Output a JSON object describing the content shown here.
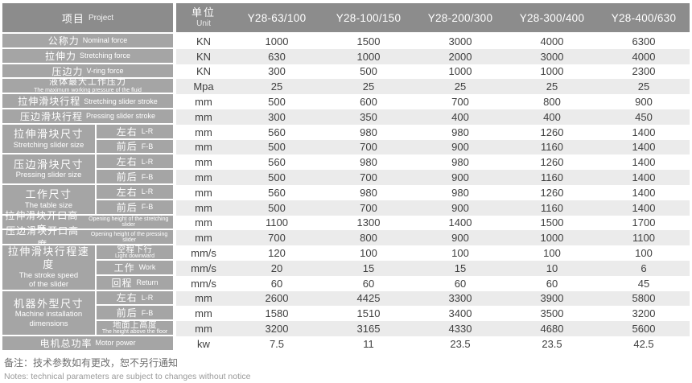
{
  "table": {
    "header": {
      "project_zh": "项目",
      "project_en": "Project",
      "unit_zh": "单位",
      "unit_en": "Unit",
      "models": [
        "Y28-63/100",
        "Y28-100/150",
        "Y28-200/300",
        "Y28-300/400",
        "Y28-400/630"
      ]
    },
    "rows": [
      {
        "label": {
          "zh": "公称力",
          "en": "Nominal force"
        },
        "unit": "KN",
        "values": [
          "1000",
          "1500",
          "3000",
          "4000",
          "6300"
        ]
      },
      {
        "label": {
          "zh": "拉伸力",
          "en": "Stretching force"
        },
        "unit": "KN",
        "values": [
          "630",
          "1000",
          "2000",
          "3000",
          "4000"
        ]
      },
      {
        "label": {
          "zh": "压边力",
          "en": "V-ring force"
        },
        "unit": "KN",
        "values": [
          "300",
          "500",
          "1000",
          "1000",
          "2300"
        ]
      },
      {
        "label": {
          "zh": "液体最大工作压力",
          "en": "The maximum working pressure of the fluid"
        },
        "stacked": true,
        "en_tiny": true,
        "unit": "Mpa",
        "values": [
          "25",
          "25",
          "25",
          "25",
          "25"
        ]
      },
      {
        "label": {
          "zh": "拉伸滑块行程",
          "en": "Stretching slider stroke"
        },
        "unit": "mm",
        "values": [
          "500",
          "600",
          "700",
          "800",
          "900"
        ]
      },
      {
        "label": {
          "zh": "压边滑块行程",
          "en": "Pressing slider stroke"
        },
        "unit": "mm",
        "values": [
          "300",
          "350",
          "400",
          "400",
          "450"
        ]
      },
      {
        "group": {
          "zh": "拉伸滑块尺寸",
          "en": [
            "Stretching slider size"
          ],
          "span": 2
        },
        "sub": {
          "zh": "左右",
          "en": "L-R"
        },
        "unit": "mm",
        "values": [
          "560",
          "980",
          "980",
          "1260",
          "1400"
        ]
      },
      {
        "sub": {
          "zh": "前后",
          "en": "F-B"
        },
        "unit": "mm",
        "values": [
          "500",
          "700",
          "900",
          "1160",
          "1400"
        ]
      },
      {
        "group": {
          "zh": "压边滑块尺寸",
          "en": [
            "Pressing slider size"
          ],
          "span": 2
        },
        "sub": {
          "zh": "左右",
          "en": "L-R"
        },
        "unit": "mm",
        "values": [
          "560",
          "980",
          "980",
          "1260",
          "1400"
        ]
      },
      {
        "sub": {
          "zh": "前后",
          "en": "F-B"
        },
        "unit": "mm",
        "values": [
          "500",
          "700",
          "900",
          "1160",
          "1400"
        ]
      },
      {
        "group": {
          "zh": "工作尺寸",
          "en": [
            "The table size"
          ],
          "span": 2
        },
        "sub": {
          "zh": "左右",
          "en": "L-R"
        },
        "unit": "mm",
        "values": [
          "560",
          "980",
          "980",
          "1260",
          "1400"
        ]
      },
      {
        "sub": {
          "zh": "前后",
          "en": "F-B"
        },
        "unit": "mm",
        "values": [
          "500",
          "700",
          "900",
          "1160",
          "1400"
        ]
      },
      {
        "label": {
          "zh": "拉伸滑块开口高度",
          "en": "Opening height of the stretching slider"
        },
        "en_tiny": true,
        "unit": "mm",
        "values": [
          "1100",
          "1300",
          "1400",
          "1500",
          "1700"
        ]
      },
      {
        "label": {
          "zh": "压边滑块开口高度",
          "en": "Opening height of the pressing slider"
        },
        "en_tiny": true,
        "unit": "mm",
        "values": [
          "700",
          "800",
          "900",
          "1000",
          "1100"
        ]
      },
      {
        "group": {
          "zh": "拉伸滑块行程速度",
          "en": [
            "The stroke speed",
            "of the slider"
          ],
          "span": 3
        },
        "sub": {
          "zh": "空程下行",
          "en": "Light downward",
          "stacked": true
        },
        "unit": "mm/s",
        "values": [
          "120",
          "100",
          "100",
          "100",
          "100"
        ]
      },
      {
        "sub": {
          "zh": "工作",
          "en": "Work"
        },
        "unit": "mm/s",
        "values": [
          "20",
          "15",
          "15",
          "10",
          "6"
        ]
      },
      {
        "sub": {
          "zh": "回程",
          "en": "Return"
        },
        "unit": "mm/s",
        "values": [
          "60",
          "60",
          "60",
          "60",
          "45"
        ]
      },
      {
        "group": {
          "zh": "机器外型尺寸",
          "en": [
            "Machine installation",
            "dimensions"
          ],
          "span": 3
        },
        "sub": {
          "zh": "左右",
          "en": "L-R"
        },
        "unit": "mm",
        "values": [
          "2600",
          "4425",
          "3300",
          "3900",
          "5800"
        ]
      },
      {
        "sub": {
          "zh": "前后",
          "en": "F-B"
        },
        "unit": "mm",
        "values": [
          "1580",
          "1510",
          "3400",
          "3500",
          "3200"
        ]
      },
      {
        "sub": {
          "zh": "地面上高度",
          "en": "The height above the floor",
          "stacked": true
        },
        "unit": "mm",
        "values": [
          "3200",
          "3165",
          "4330",
          "4680",
          "5600"
        ]
      },
      {
        "label": {
          "zh": "电机总功率",
          "en": "Motor power"
        },
        "unit": "kw",
        "values": [
          "7.5",
          "11",
          "23.5",
          "23.5",
          "42.5"
        ]
      }
    ]
  },
  "notes": {
    "zh": "备注：技术参数如有更改，恕不另行通知",
    "en": "Notes: technical parameters are subject to changes without notice"
  },
  "colors": {
    "header_bg": "#8c8c8c",
    "label_bg": "#a5a5a5",
    "row_alt_bg": "#ebebeb",
    "row_bg": "#ffffff",
    "value_text": "#3f3f3f",
    "label_text": "#ffffff",
    "notes_zh_text": "#6f6f6f",
    "notes_en_text": "#9a9a9a"
  }
}
